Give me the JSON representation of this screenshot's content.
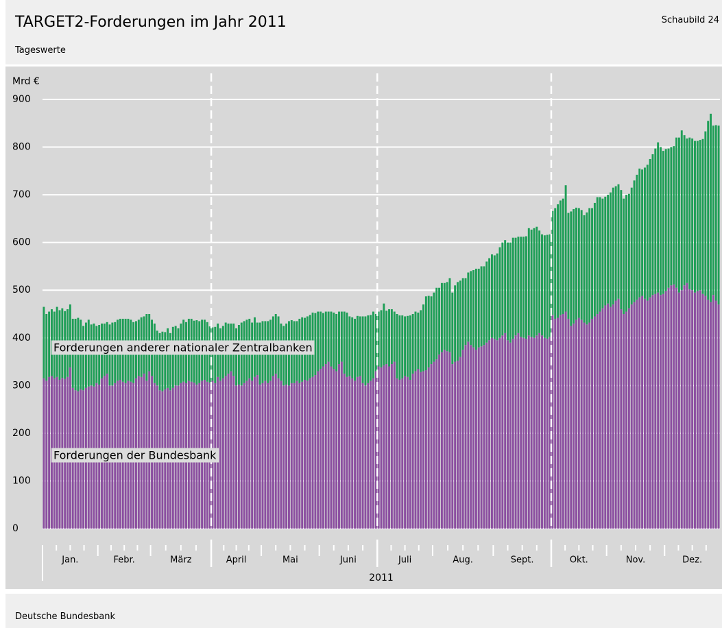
{
  "header": {
    "title": "TARGET2-Forderungen im Jahr 2011",
    "figure": "Schaubild 24",
    "subtitle": "Tageswerte"
  },
  "footer": {
    "source": "Deutsche Bundesbank"
  },
  "chart_data": {
    "type": "stacked_bar",
    "y_label": "Mrd €",
    "x_label": "2011",
    "x_labels": [
      "Jan.",
      "Febr.",
      "März",
      "April",
      "Mai",
      "Juni",
      "Juli",
      "Aug.",
      "Sept.",
      "Okt.",
      "Nov.",
      "Dez."
    ],
    "x_label_counts": [
      21,
      20,
      23,
      19,
      22,
      22,
      21,
      23,
      22,
      21,
      22,
      21
    ],
    "ylim": [
      0,
      900
    ],
    "yticks": [
      0,
      100,
      200,
      300,
      400,
      500,
      600,
      700,
      800,
      900
    ],
    "grid": true,
    "series": [
      {
        "name": "Forderungen der Bundesbank",
        "color": "#8b4fa0",
        "values": [
          315,
          310,
          318,
          320,
          315,
          318,
          312,
          316,
          314,
          318,
          338,
          295,
          290,
          288,
          292,
          290,
          295,
          298,
          300,
          298,
          305,
          302,
          315,
          320,
          325,
          300,
          300,
          305,
          310,
          312,
          308,
          305,
          310,
          308,
          305,
          315,
          320,
          318,
          325,
          310,
          330,
          320,
          305,
          300,
          290,
          288,
          292,
          295,
          290,
          295,
          300,
          300,
          305,
          308,
          305,
          310,
          308,
          306,
          302,
          305,
          310,
          312,
          308,
          306,
          310,
          305,
          318,
          310,
          315,
          320,
          325,
          330,
          320,
          300,
          302,
          300,
          305,
          310,
          315,
          310,
          318,
          322,
          302,
          305,
          310,
          305,
          310,
          320,
          325,
          315,
          310,
          300,
          302,
          300,
          305,
          305,
          310,
          305,
          308,
          312,
          310,
          315,
          318,
          322,
          330,
          335,
          340,
          345,
          350,
          340,
          335,
          330,
          345,
          350,
          325,
          318,
          320,
          315,
          310,
          318,
          320,
          305,
          300,
          305,
          310,
          315,
          330,
          340,
          338,
          342,
          345,
          340,
          345,
          350,
          315,
          312,
          315,
          320,
          318,
          312,
          325,
          330,
          335,
          328,
          330,
          332,
          338,
          345,
          350,
          355,
          365,
          370,
          375,
          372,
          370,
          345,
          350,
          352,
          360,
          375,
          385,
          392,
          385,
          380,
          375,
          380,
          382,
          385,
          390,
          395,
          400,
          398,
          395,
          400,
          405,
          410,
          395,
          390,
          398,
          405,
          410,
          402,
          400,
          398,
          405,
          402,
          400,
          405,
          410,
          405,
          400,
          398,
          402,
          448,
          440,
          442,
          448,
          450,
          455,
          440,
          425,
          430,
          438,
          442,
          438,
          432,
          428,
          432,
          440,
          445,
          450,
          455,
          462,
          468,
          472,
          465,
          470,
          478,
          482,
          460,
          450,
          455,
          462,
          470,
          475,
          480,
          485,
          488,
          482,
          478,
          485,
          490,
          492,
          495,
          490,
          492,
          498,
          505,
          510,
          512,
          505,
          495,
          500,
          510,
          515,
          502,
          500,
          495,
          498,
          500,
          492,
          488,
          480,
          475,
          490,
          478,
          470
        ]
      },
      {
        "name": "Forderungen anderer nationaler Zentralbanken",
        "color": "#1f9e57",
        "values": [
          150,
          140,
          137,
          140,
          140,
          147,
          146,
          146,
          142,
          142,
          132,
          145,
          150,
          154,
          146,
          135,
          137,
          140,
          128,
          132,
          120,
          125,
          115,
          110,
          108,
          128,
          132,
          128,
          128,
          128,
          132,
          135,
          130,
          130,
          128,
          120,
          118,
          125,
          120,
          140,
          120,
          118,
          125,
          115,
          120,
          125,
          120,
          125,
          120,
          128,
          125,
          120,
          125,
          130,
          128,
          130,
          132,
          130,
          135,
          130,
          128,
          126,
          125,
          118,
          112,
          118,
          112,
          110,
          110,
          112,
          105,
          100,
          110,
          120,
          125,
          132,
          130,
          128,
          125,
          122,
          125,
          110,
          130,
          130,
          125,
          130,
          128,
          125,
          125,
          130,
          120,
          125,
          128,
          135,
          132,
          130,
          125,
          135,
          135,
          130,
          135,
          133,
          135,
          130,
          125,
          120,
          112,
          110,
          105,
          115,
          118,
          120,
          110,
          105,
          130,
          135,
          125,
          128,
          130,
          128,
          125,
          140,
          145,
          142,
          138,
          140,
          120,
          115,
          120,
          130,
          112,
          120,
          115,
          105,
          135,
          135,
          132,
          125,
          128,
          135,
          125,
          125,
          118,
          130,
          140,
          155,
          150,
          142,
          145,
          150,
          140,
          145,
          140,
          145,
          155,
          150,
          160,
          165,
          160,
          150,
          140,
          145,
          155,
          162,
          170,
          165,
          168,
          165,
          170,
          172,
          175,
          175,
          182,
          190,
          195,
          195,
          205,
          210,
          212,
          205,
          202,
          210,
          212,
          215,
          225,
          225,
          230,
          228,
          215,
          212,
          215,
          218,
          215,
          218,
          232,
          238,
          240,
          242,
          265,
          222,
          240,
          240,
          235,
          230,
          230,
          225,
          235,
          240,
          232,
          238,
          245,
          240,
          230,
          228,
          228,
          240,
          245,
          240,
          240,
          250,
          242,
          245,
          240,
          245,
          255,
          262,
          270,
          265,
          275,
          285,
          290,
          295,
          305,
          315,
          310,
          300,
          298,
          292,
          290,
          290,
          315,
          325,
          335,
          315,
          303,
          318,
          318,
          318,
          315,
          315,
          325,
          345,
          375,
          395,
          355,
          368,
          375
        ]
      }
    ]
  }
}
